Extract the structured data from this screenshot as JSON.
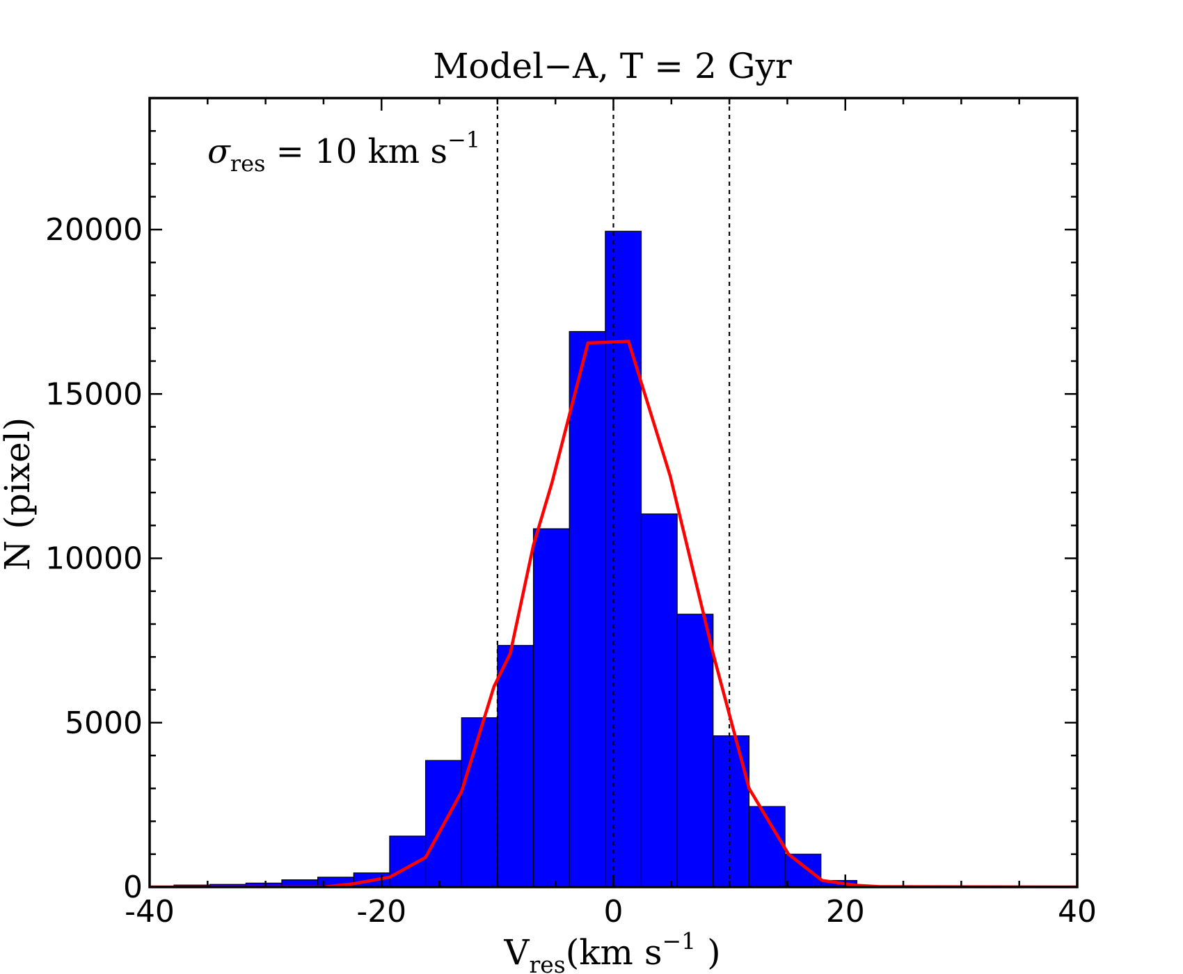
{
  "chart_data": {
    "type": "bar",
    "title": "Model−A, T = 2 Gyr",
    "xlabel_main": "V",
    "xlabel_sub": "res",
    "xlabel_rest": "(km s",
    "xlabel_sup": "−1",
    "xlabel_close": " )",
    "ylabel": "N (pixel)",
    "annotation": {
      "symbol": "σ",
      "sub": "res",
      "text": " = 10 km s",
      "sup": "−1"
    },
    "xlim": [
      -40,
      40
    ],
    "ylim": [
      0,
      24000
    ],
    "xticks": [
      -40,
      -20,
      0,
      20,
      40
    ],
    "xtick_labels": [
      "-40",
      "-20",
      "0",
      "20",
      "40"
    ],
    "yticks": [
      0,
      5000,
      10000,
      15000,
      20000
    ],
    "ytick_labels": [
      "0",
      "5000",
      "10000",
      "15000",
      "20000"
    ],
    "bin_edges": [
      -41,
      -37.9,
      -34.8,
      -31.7,
      -28.6,
      -25.5,
      -22.4,
      -19.3,
      -16.2,
      -13.1,
      -10,
      -6.9,
      -3.8,
      -0.7,
      2.4,
      5.5,
      8.6,
      11.7,
      14.8,
      17.9,
      21,
      24.1,
      27.2,
      30.3,
      33.4,
      36.5,
      39.6
    ],
    "bar_values": [
      20,
      60,
      80,
      120,
      220,
      300,
      430,
      1550,
      3850,
      5150,
      7350,
      10900,
      16900,
      19950,
      11350,
      8300,
      4600,
      2450,
      1000,
      200,
      40,
      20,
      10,
      5,
      5,
      5
    ],
    "bar_color": "#0000ff",
    "fit_line": {
      "color": "#ff0000",
      "x": [
        -41,
        -25,
        -22.4,
        -19.3,
        -16.2,
        -13.1,
        -10.3,
        -8.9,
        -6.9,
        -5.3,
        -2.2,
        1.3,
        4.9,
        8.6,
        11.7,
        15.1,
        18,
        21,
        23,
        40
      ],
      "y": [
        0,
        0,
        100,
        300,
        900,
        2900,
        6100,
        7100,
        10400,
        12300,
        16550,
        16600,
        12500,
        7100,
        3000,
        1000,
        200,
        50,
        10,
        0
      ]
    },
    "vlines": {
      "style": "dashed",
      "x": [
        -10,
        0,
        10
      ]
    }
  }
}
